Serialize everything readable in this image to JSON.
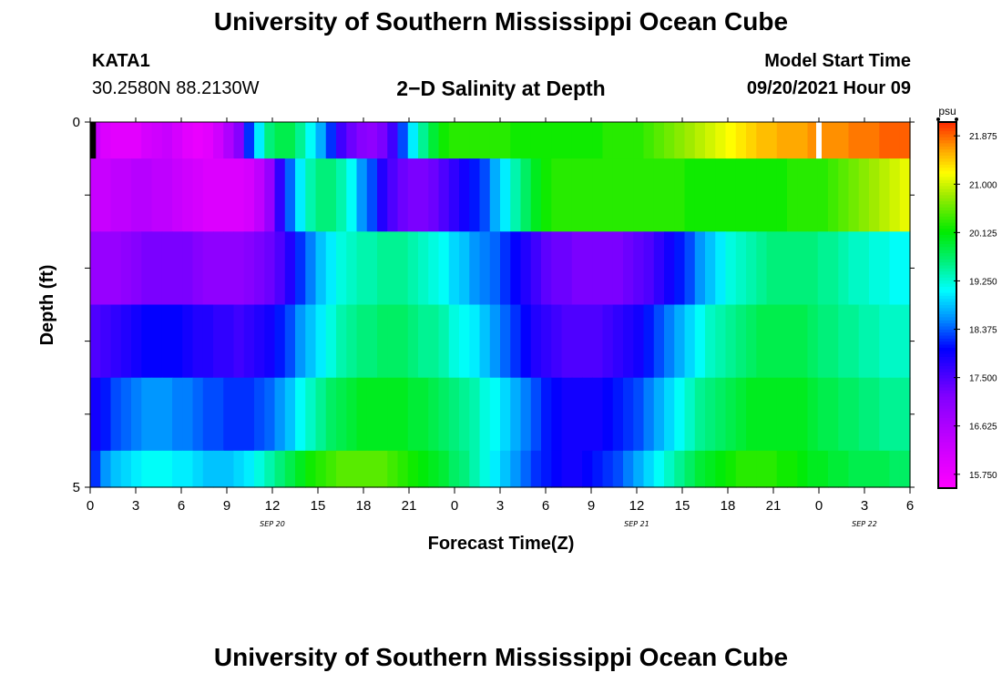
{
  "page": {
    "title_top": "University of Southern Mississippi Ocean Cube",
    "title_bottom": "University of Southern Mississippi Ocean Cube",
    "station_name": "KATA1",
    "station_coords": "30.2580N  88.2130W",
    "model_start_label": "Model Start Time",
    "model_start_value": "09/20/2021 Hour 09"
  },
  "chart_data": {
    "type": "heatmap",
    "title": "2−D Salinity at Depth",
    "xlabel": "Forecast Time(Z)",
    "ylabel": "Depth (ft)",
    "units": "psu",
    "xlim": [
      0,
      54
    ],
    "ylim": [
      0,
      5
    ],
    "x_ticks": [
      {
        "x": 0,
        "label": "0"
      },
      {
        "x": 3,
        "label": "3"
      },
      {
        "x": 6,
        "label": "6"
      },
      {
        "x": 9,
        "label": "9"
      },
      {
        "x": 12,
        "label": "12"
      },
      {
        "x": 15,
        "label": "15"
      },
      {
        "x": 18,
        "label": "18"
      },
      {
        "x": 21,
        "label": "21"
      },
      {
        "x": 24,
        "label": "0"
      },
      {
        "x": 27,
        "label": "3"
      },
      {
        "x": 30,
        "label": "6"
      },
      {
        "x": 33,
        "label": "9"
      },
      {
        "x": 36,
        "label": "12"
      },
      {
        "x": 39,
        "label": "15"
      },
      {
        "x": 42,
        "label": "18"
      },
      {
        "x": 45,
        "label": "21"
      },
      {
        "x": 48,
        "label": "0"
      },
      {
        "x": 51,
        "label": "3"
      },
      {
        "x": 54,
        "label": "6"
      }
    ],
    "date_labels": [
      {
        "x": 12,
        "label": "SEP 20"
      },
      {
        "x": 36,
        "label": "SEP 21"
      },
      {
        "x": 51,
        "label": "SEP 22"
      }
    ],
    "y_ticks": [
      {
        "y": 0,
        "label": "0"
      },
      {
        "y": 1,
        "label": ""
      },
      {
        "y": 2,
        "label": ""
      },
      {
        "y": 3,
        "label": ""
      },
      {
        "y": 4,
        "label": ""
      },
      {
        "y": 5,
        "label": "5"
      }
    ],
    "colorbar": {
      "min": 15.5,
      "max": 22.125,
      "ticks": [
        "15.750",
        "16.625",
        "17.500",
        "18.375",
        "19.250",
        "20.125",
        "21.000",
        "21.875"
      ]
    },
    "markers": [
      {
        "x": 0.2,
        "depth_top": 0,
        "depth_bottom": 0.5,
        "color": "#000000"
      },
      {
        "x": 48,
        "depth_top": 0,
        "depth_bottom": 0.5,
        "color": "#ffffff"
      }
    ],
    "depth_bands": [
      0.5,
      1.5,
      2.5,
      3.5,
      4.5,
      5.0
    ],
    "series": [
      {
        "name": "depth 0.0–0.5 ft",
        "values": [
          16.3,
          16.0,
          15.9,
          15.9,
          15.9,
          16.1,
          16.2,
          16.3,
          16.1,
          15.9,
          15.8,
          15.9,
          16.2,
          16.6,
          17.1,
          18.2,
          19.0,
          19.6,
          19.8,
          19.8,
          19.5,
          19.1,
          18.7,
          18.2,
          17.6,
          17.3,
          17.1,
          17.0,
          17.2,
          17.6,
          18.3,
          19.0,
          19.5,
          19.9,
          20.2,
          20.3,
          20.3,
          20.3,
          20.3,
          20.3,
          20.3,
          20.2,
          20.2,
          20.2,
          20.2,
          20.2,
          20.2,
          20.2,
          20.2,
          20.2,
          20.3,
          20.3,
          20.3,
          20.3,
          20.4,
          20.5,
          20.6,
          20.7,
          20.8,
          20.9,
          21.0,
          21.1,
          21.2,
          21.3,
          21.4,
          21.5,
          21.5,
          21.6,
          21.6,
          21.6,
          21.7,
          21.7,
          21.7,
          21.7,
          21.8,
          21.8,
          21.8,
          21.9,
          21.9,
          21.9
        ]
      },
      {
        "name": "depth 0.5–1.5 ft",
        "values": [
          16.3,
          16.3,
          16.4,
          16.4,
          16.5,
          16.5,
          16.4,
          16.4,
          16.3,
          16.2,
          16.1,
          16.0,
          16.0,
          16.0,
          16.0,
          16.1,
          16.4,
          16.9,
          17.7,
          18.4,
          19.0,
          19.4,
          19.6,
          19.6,
          19.4,
          19.1,
          18.6,
          18.3,
          17.8,
          17.5,
          17.3,
          17.2,
          17.2,
          17.3,
          17.5,
          17.7,
          17.9,
          18.1,
          18.3,
          18.7,
          19.0,
          19.4,
          19.7,
          20.0,
          20.2,
          20.3,
          20.3,
          20.3,
          20.3,
          20.3,
          20.3,
          20.3,
          20.3,
          20.3,
          20.3,
          20.3,
          20.3,
          20.3,
          20.2,
          20.2,
          20.2,
          20.2,
          20.2,
          20.2,
          20.2,
          20.2,
          20.2,
          20.2,
          20.3,
          20.3,
          20.3,
          20.3,
          20.4,
          20.5,
          20.6,
          20.7,
          20.8,
          20.9,
          21.0,
          21.1
        ]
      },
      {
        "name": "depth 1.5–2.5 ft",
        "values": [
          16.9,
          16.9,
          16.9,
          17.0,
          17.1,
          17.2,
          17.2,
          17.2,
          17.2,
          17.2,
          17.1,
          17.0,
          17.0,
          17.0,
          17.0,
          17.1,
          17.2,
          17.3,
          17.5,
          17.8,
          18.2,
          18.5,
          18.8,
          19.0,
          19.2,
          19.3,
          19.4,
          19.4,
          19.5,
          19.5,
          19.5,
          19.4,
          19.3,
          19.2,
          19.1,
          18.9,
          18.8,
          18.6,
          18.5,
          18.4,
          18.2,
          18.0,
          17.8,
          17.6,
          17.4,
          17.3,
          17.3,
          17.2,
          17.2,
          17.2,
          17.2,
          17.2,
          17.3,
          17.4,
          17.5,
          17.7,
          17.9,
          18.1,
          18.3,
          18.6,
          18.8,
          19.0,
          19.2,
          19.3,
          19.4,
          19.5,
          19.6,
          19.6,
          19.6,
          19.6,
          19.6,
          19.5,
          19.5,
          19.4,
          19.3,
          19.3,
          19.2,
          19.2,
          19.1,
          19.1
        ]
      },
      {
        "name": "depth 2.5–3.5 ft",
        "values": [
          17.5,
          17.6,
          17.7,
          17.8,
          17.9,
          18.0,
          18.0,
          18.0,
          18.0,
          17.9,
          17.8,
          17.8,
          17.7,
          17.7,
          17.6,
          17.7,
          17.8,
          17.9,
          18.1,
          18.3,
          18.6,
          18.8,
          19.0,
          19.2,
          19.4,
          19.5,
          19.6,
          19.6,
          19.7,
          19.7,
          19.7,
          19.6,
          19.5,
          19.5,
          19.4,
          19.2,
          19.1,
          19.0,
          18.8,
          18.6,
          18.4,
          18.2,
          18.0,
          17.8,
          17.7,
          17.6,
          17.5,
          17.5,
          17.5,
          17.5,
          17.6,
          17.7,
          17.8,
          17.9,
          18.1,
          18.3,
          18.5,
          18.7,
          18.9,
          19.1,
          19.3,
          19.4,
          19.5,
          19.6,
          19.7,
          19.8,
          19.8,
          19.8,
          19.8,
          19.8,
          19.7,
          19.6,
          19.6,
          19.5,
          19.5,
          19.4,
          19.4,
          19.3,
          19.3,
          19.3
        ]
      },
      {
        "name": "depth 3.5–4.5 ft",
        "values": [
          17.9,
          18.1,
          18.3,
          18.4,
          18.5,
          18.6,
          18.6,
          18.6,
          18.5,
          18.5,
          18.4,
          18.3,
          18.3,
          18.2,
          18.2,
          18.2,
          18.3,
          18.4,
          18.6,
          18.8,
          19.1,
          19.3,
          19.5,
          19.7,
          19.8,
          19.9,
          20.0,
          20.0,
          20.0,
          20.0,
          20.0,
          19.9,
          19.9,
          19.8,
          19.7,
          19.6,
          19.5,
          19.4,
          19.2,
          19.1,
          18.9,
          18.7,
          18.5,
          18.3,
          18.1,
          18.0,
          17.9,
          17.9,
          17.9,
          17.9,
          18.0,
          18.1,
          18.2,
          18.3,
          18.5,
          18.7,
          18.9,
          19.1,
          19.3,
          19.5,
          19.6,
          19.7,
          19.8,
          19.9,
          20.0,
          20.0,
          20.0,
          20.0,
          20.0,
          20.0,
          19.9,
          19.8,
          19.8,
          19.7,
          19.7,
          19.6,
          19.6,
          19.5,
          19.5,
          19.5
        ]
      },
      {
        "name": "depth 4.5–5.0 ft",
        "values": [
          18.2,
          18.6,
          18.8,
          18.9,
          19.0,
          19.1,
          19.1,
          19.1,
          19.0,
          19.0,
          18.9,
          18.8,
          18.8,
          18.8,
          18.9,
          19.0,
          19.2,
          19.4,
          19.6,
          19.8,
          20.0,
          20.2,
          20.3,
          20.4,
          20.5,
          20.5,
          20.5,
          20.5,
          20.5,
          20.4,
          20.3,
          20.2,
          20.1,
          20.0,
          19.9,
          19.7,
          19.6,
          19.4,
          19.2,
          19.0,
          18.8,
          18.6,
          18.4,
          18.2,
          18.1,
          18.0,
          17.9,
          17.9,
          18.0,
          18.1,
          18.2,
          18.3,
          18.5,
          18.7,
          18.9,
          19.1,
          19.3,
          19.5,
          19.7,
          19.9,
          20.0,
          20.1,
          20.2,
          20.3,
          20.3,
          20.3,
          20.3,
          20.2,
          20.2,
          20.1,
          20.0,
          20.0,
          19.9,
          19.9,
          19.8,
          19.8,
          19.8,
          19.8,
          19.7,
          19.7
        ]
      }
    ]
  }
}
